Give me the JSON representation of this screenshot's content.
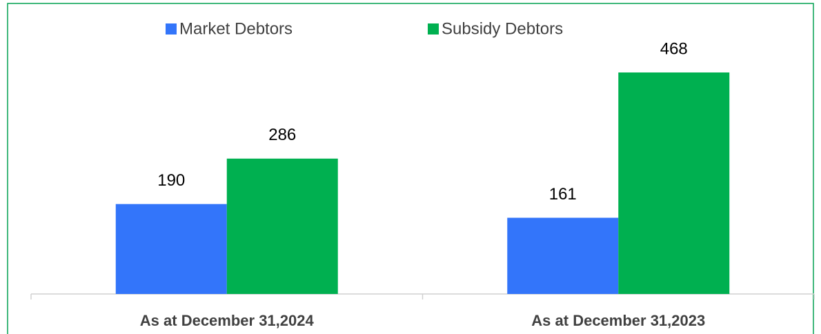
{
  "chart_data": {
    "type": "bar",
    "categories": [
      "As at December 31,2024",
      "As at December 31,2023"
    ],
    "series": [
      {
        "name": "Market Debtors",
        "color": "#3375fa",
        "values": [
          190,
          161
        ]
      },
      {
        "name": "Subsidy Debtors",
        "color": "#00b050",
        "values": [
          286,
          468
        ]
      }
    ],
    "legend": "top"
  }
}
